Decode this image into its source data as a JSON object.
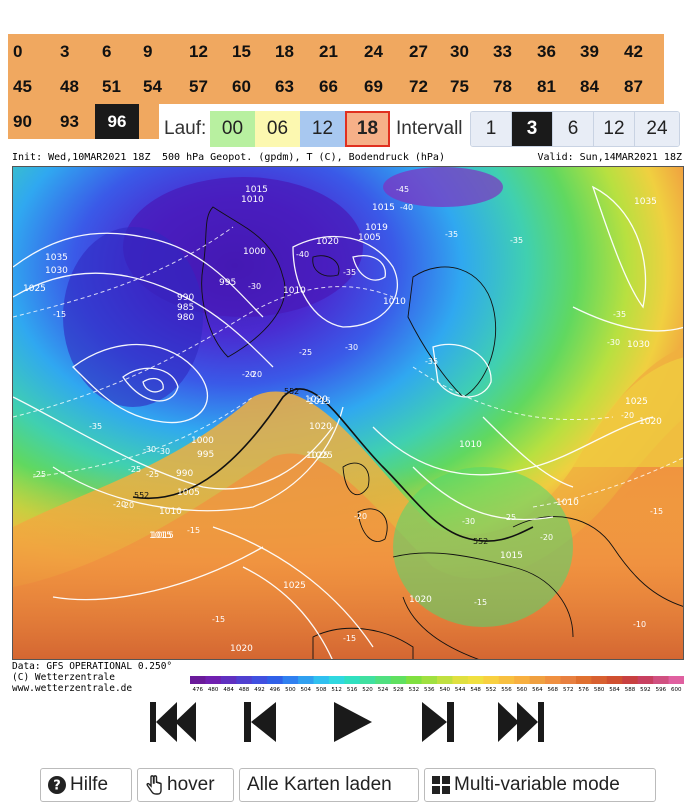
{
  "hours": {
    "row1": [
      "0",
      "3",
      "6",
      "9",
      "12",
      "15",
      "18",
      "21",
      "24",
      "27",
      "30",
      "33",
      "36",
      "39",
      "42"
    ],
    "row2": [
      "45",
      "48",
      "51",
      "54",
      "57",
      "60",
      "63",
      "66",
      "69",
      "72",
      "75",
      "78",
      "81",
      "84",
      "87"
    ],
    "row3": [
      "90",
      "93",
      "96"
    ],
    "selected": "96"
  },
  "runs": {
    "label": "Lauf:",
    "items": [
      {
        "label": "00",
        "color": "#b8f0a0"
      },
      {
        "label": "06",
        "color": "#fcf8b0"
      },
      {
        "label": "12",
        "color": "#a8c8f0"
      },
      {
        "label": "18",
        "color": "#f6b088"
      }
    ],
    "selected": "18"
  },
  "intervals": {
    "label": "Intervall",
    "items": [
      "1",
      "3",
      "6",
      "12",
      "24"
    ],
    "selected": "3"
  },
  "map": {
    "init": "Init: Wed,10MAR2021 18Z",
    "title": "500 hPa Geopot. (gpdm), T (C), Bodendruck (hPa)",
    "valid": "Valid: Sun,14MAR2021 18Z",
    "credit_data": "Data: GFS OPERATIONAL 0.250°",
    "credit_copy": "(C) Wetterzentrale",
    "credit_url": "www.wetterzentrale.de",
    "pressure_labels": [
      "1015",
      "1010",
      "1000",
      "995",
      "990",
      "985",
      "980",
      "1020",
      "1019",
      "1005",
      "1030",
      "1035",
      "1025",
      "1015",
      "1010",
      "1000",
      "990",
      "995",
      "1005",
      "1010",
      "1015",
      "1020",
      "1025",
      "1020",
      "1025",
      "1015",
      "1010",
      "1010",
      "1020",
      "1015",
      "1010",
      "1035",
      "1030",
      "1025",
      "1020",
      "1020",
      "1015",
      "1025"
    ],
    "temp_labels": [
      "-45",
      "-40",
      "-35",
      "-35",
      "-40",
      "-30",
      "-35",
      "-35",
      "-30",
      "-25",
      "-20",
      "-35",
      "-30",
      "-30",
      "-35",
      "-25",
      "-20",
      "-15",
      "-20",
      "-25",
      "-20",
      "-30",
      "-20",
      "-25",
      "-20",
      "-15",
      "-15",
      "-15",
      "-15",
      "-10",
      "-15",
      "-20",
      "-25",
      "-30"
    ],
    "geopot_labels": [
      "552",
      "552",
      "552"
    ]
  },
  "colorbar": {
    "ticks": [
      "476",
      "480",
      "484",
      "488",
      "492",
      "496",
      "500",
      "504",
      "508",
      "512",
      "516",
      "520",
      "524",
      "528",
      "532",
      "536",
      "540",
      "544",
      "548",
      "552",
      "556",
      "560",
      "564",
      "568",
      "572",
      "576",
      "580",
      "584",
      "588",
      "592",
      "596",
      "600"
    ]
  },
  "player": [
    "first-icon",
    "prev-icon",
    "play-icon",
    "next-icon",
    "last-icon"
  ],
  "buttons": {
    "help": "Hilfe",
    "hover": "hover",
    "load_all": "Alle Karten laden",
    "multivariable": "Multi-variable mode"
  }
}
